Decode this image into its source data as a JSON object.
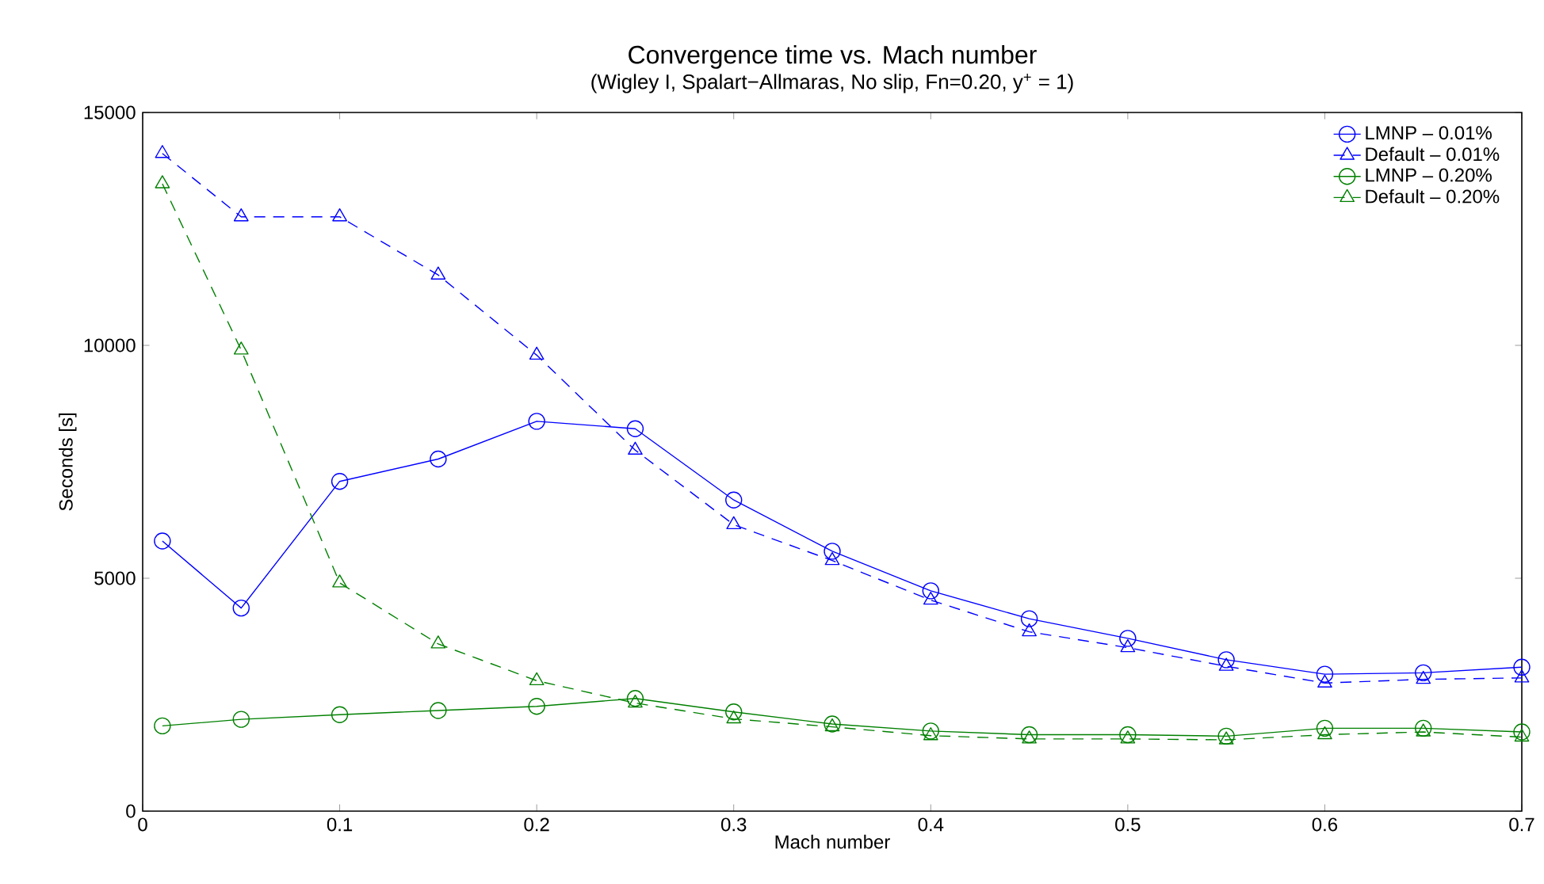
{
  "chart_data": {
    "type": "line",
    "title": "Convergence time vs. Mach number",
    "subtitle": "(Wigley I, Spalart−Allmaras, No slip, Fn=0.20, y$^{+}$ = 1)",
    "xlabel": "Mach number",
    "ylabel": "Seconds [s]",
    "x": [
      0.01,
      0.05,
      0.1,
      0.15,
      0.2,
      0.25,
      0.3,
      0.35,
      0.4,
      0.45,
      0.5,
      0.55,
      0.6,
      0.65,
      0.7
    ],
    "series": [
      {
        "name": "LMNP – 0.01%",
        "color": "#0000ff",
        "line_style": "solid",
        "marker": "circle",
        "values": [
          5800,
          4360,
          7080,
          7560,
          8370,
          8210,
          6680,
          5580,
          4730,
          4130,
          3710,
          3250,
          2940,
          2970,
          3090
        ]
      },
      {
        "name": "Default – 0.01%",
        "color": "#0000ff",
        "line_style": "dashed",
        "marker": "triangle",
        "values": [
          14120,
          12760,
          12760,
          11510,
          9790,
          7750,
          6150,
          5380,
          4530,
          3850,
          3510,
          3110,
          2750,
          2830,
          2860
        ]
      },
      {
        "name": "LMNP – 0.20%",
        "color": "#008000",
        "line_style": "solid",
        "marker": "circle",
        "values": [
          1830,
          1970,
          2070,
          2160,
          2250,
          2420,
          2130,
          1870,
          1720,
          1640,
          1640,
          1610,
          1780,
          1780,
          1700
        ]
      },
      {
        "name": "Default – 0.20%",
        "color": "#008000",
        "line_style": "dashed",
        "marker": "triangle",
        "values": [
          13470,
          9900,
          4900,
          3590,
          2800,
          2320,
          1980,
          1810,
          1620,
          1550,
          1550,
          1530,
          1640,
          1700,
          1590
        ]
      }
    ],
    "xlim": [
      0,
      0.7
    ],
    "ylim": [
      0,
      15000
    ],
    "xticks": [
      0,
      0.1,
      0.2,
      0.3,
      0.4,
      0.5,
      0.6,
      0.7
    ],
    "yticks": [
      0,
      5000,
      10000,
      15000
    ],
    "grid": false,
    "legend": "top right"
  }
}
